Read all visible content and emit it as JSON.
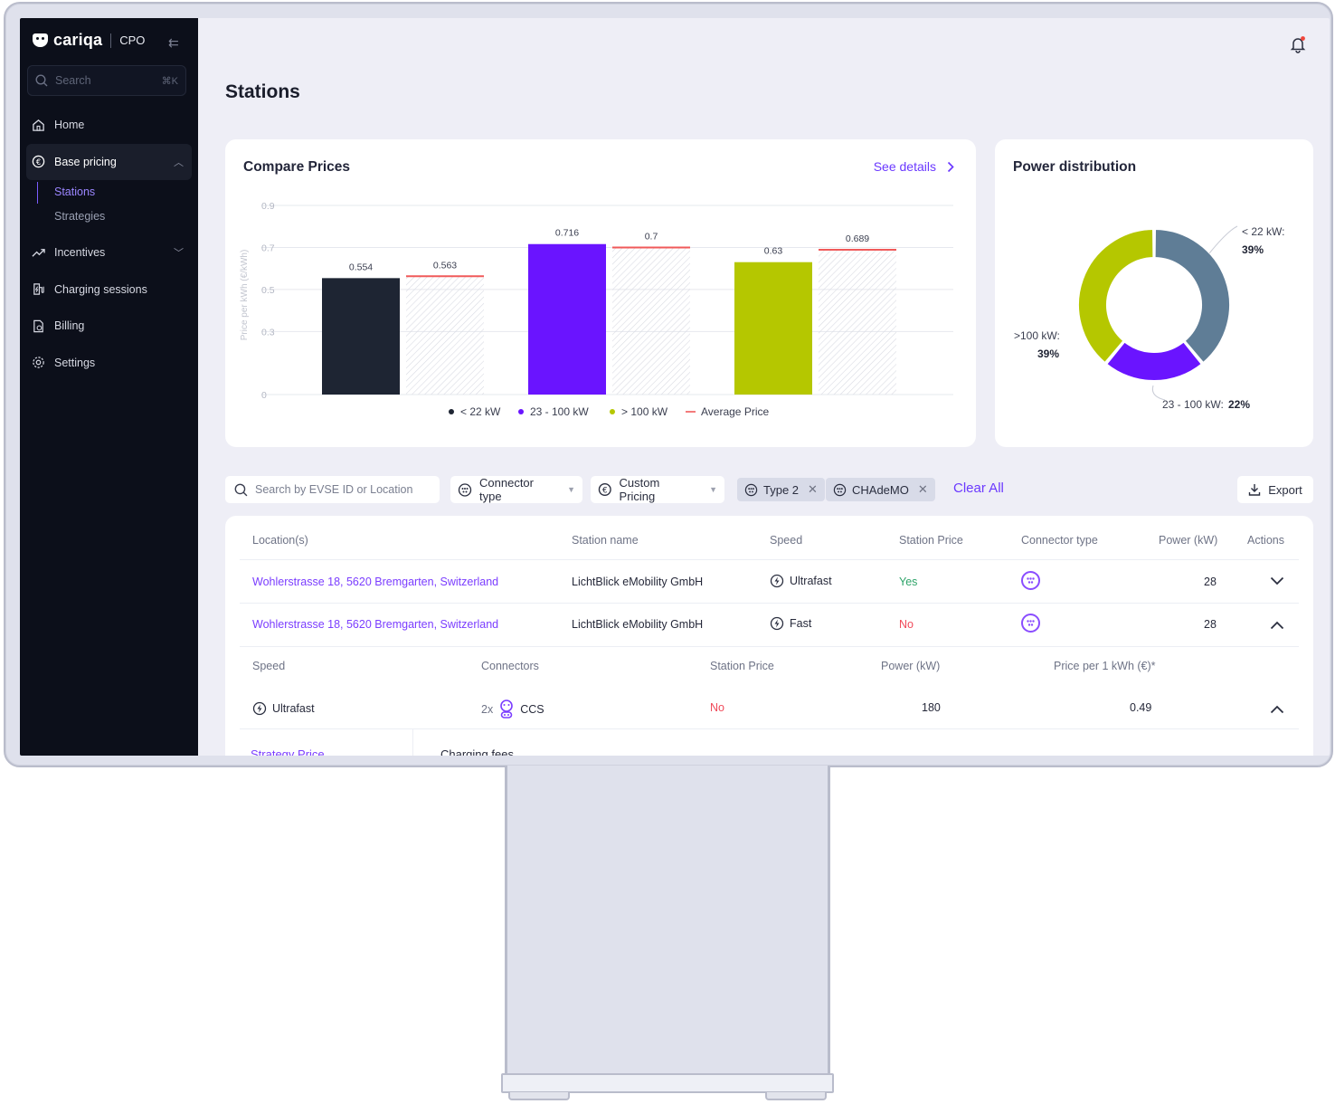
{
  "app": {
    "brand": "cariqa",
    "product": "CPO"
  },
  "sidebar": {
    "search_placeholder": "Search",
    "search_shortcut": "⌘K",
    "items": [
      {
        "label": "Home",
        "icon": "home-icon"
      },
      {
        "label": "Base pricing",
        "icon": "euro-icon",
        "expanded": true
      },
      {
        "label": "Incentives",
        "icon": "trend-icon"
      },
      {
        "label": "Charging sessions",
        "icon": "charging-icon"
      },
      {
        "label": "Billing",
        "icon": "invoice-icon"
      },
      {
        "label": "Settings",
        "icon": "gear-icon"
      }
    ],
    "subitems": [
      {
        "label": "Stations",
        "active": true
      },
      {
        "label": "Strategies"
      }
    ]
  },
  "page": {
    "title": "Stations"
  },
  "compare": {
    "title": "Compare Prices",
    "link_label": "See details",
    "ylabel": "Price per kWh (€/kWh)",
    "yticks": [
      "0.9",
      "0.7",
      "0.5",
      "0.3",
      "0"
    ],
    "legend": [
      "< 22 kW",
      "23 - 100 kW",
      "> 100 kW",
      "Average Price"
    ]
  },
  "power": {
    "title": "Power distribution",
    "labels": [
      {
        "name": "< 22 kW:",
        "pct": "39%"
      },
      {
        "name": ">100 kW:",
        "pct": "39%"
      },
      {
        "name": "23 - 100 kW:",
        "pct": "22%"
      }
    ]
  },
  "chart_data": [
    {
      "type": "bar",
      "title": "Compare Prices",
      "ylabel": "Price per kWh (€/kWh)",
      "ylim": [
        0,
        0.9
      ],
      "categories": [
        "< 22 kW",
        "23 - 100 kW",
        "> 100 kW"
      ],
      "series": [
        {
          "name": "Price",
          "values": [
            0.554,
            0.716,
            0.63
          ]
        },
        {
          "name": "Average Price",
          "values": [
            0.563,
            0.7,
            0.689
          ]
        }
      ],
      "colors": [
        "#1e2533",
        "#6a14ff",
        "#b5c700"
      ],
      "avg_color": "#f05a5a",
      "legend": "bottom"
    },
    {
      "type": "pie",
      "title": "Power distribution",
      "labels": [
        "< 22 kW",
        "23 - 100 kW",
        ">100 kW"
      ],
      "values": [
        39,
        22,
        39
      ],
      "colors": [
        "#5f7d96",
        "#6a14ff",
        "#b5c700"
      ]
    }
  ],
  "filters": {
    "search_placeholder": "Search by EVSE ID or Location",
    "connector_type": "Connector type",
    "custom_pricing": "Custom Pricing",
    "chips": [
      "Type 2",
      "CHAdeMO"
    ],
    "clear_all": "Clear All",
    "export": "Export"
  },
  "table": {
    "headers": [
      "Location(s)",
      "Station name",
      "Speed",
      "Station Price",
      "Connector type",
      "Power (kW)",
      "Actions"
    ],
    "rows": [
      {
        "location": "Wohlerstrasse 18, 5620 Bremgarten, Switzerland",
        "station": "LichtBlick eMobility GmbH",
        "speed": "Ultrafast",
        "price": "Yes",
        "power": "28"
      },
      {
        "location": "Wohlerstrasse 18, 5620 Bremgarten, Switzerland",
        "station": "LichtBlick eMobility GmbH",
        "speed": "Fast",
        "price": "No",
        "power": "28"
      }
    ],
    "sub_headers": [
      "Speed",
      "Connectors",
      "Station Price",
      "Power (kW)",
      "Price per 1 kWh (€)*"
    ],
    "sub_row": {
      "speed": "Ultrafast",
      "count": "2x",
      "connector": "CCS",
      "price": "No",
      "power": "180",
      "kwh_price": "0.49"
    },
    "tabs": [
      "Strategy Price",
      "Charging fees"
    ]
  }
}
